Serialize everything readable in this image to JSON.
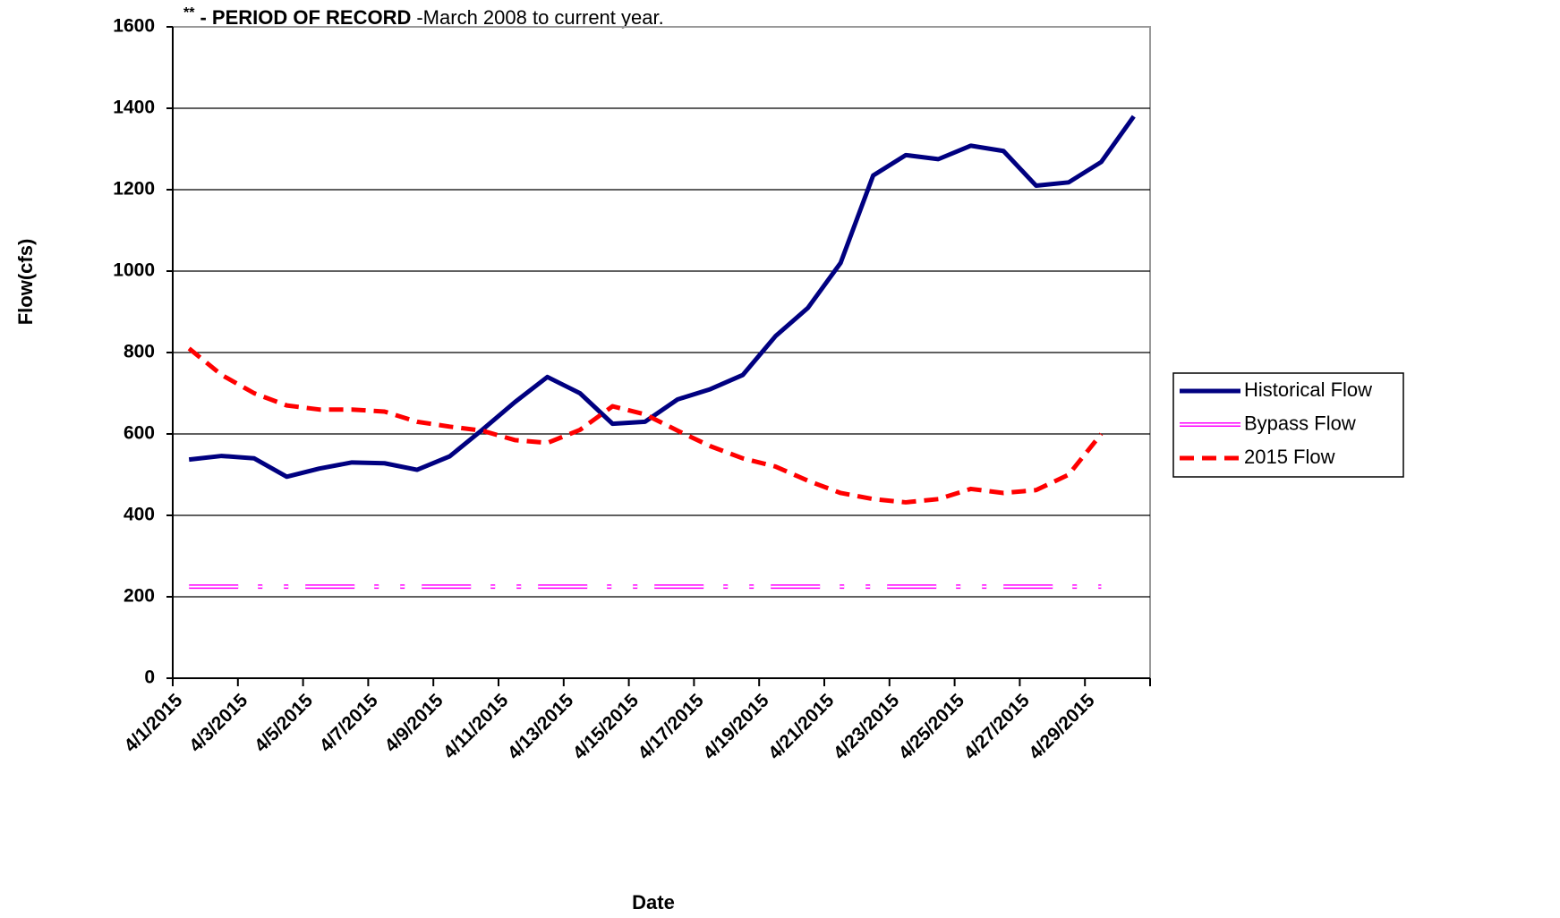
{
  "chart_data": {
    "type": "line",
    "note": {
      "mark": "**",
      "bold": "- PERIOD OF RECORD",
      "text": "-March 2008 to current year."
    },
    "x_label": "Date",
    "y_label": "Flow(cfs)",
    "categories": [
      "4/1/2015",
      null,
      "4/3/2015",
      null,
      "4/5/2015",
      null,
      "4/7/2015",
      null,
      "4/9/2015",
      null,
      "4/11/2015",
      null,
      "4/13/2015",
      null,
      "4/15/2015",
      null,
      "4/17/2015",
      null,
      "4/19/2015",
      null,
      "4/21/2015",
      null,
      "4/23/2015",
      null,
      "4/25/2015",
      null,
      "4/27/2015",
      null,
      "4/29/2015",
      null
    ],
    "series": [
      {
        "name": "Historical Flow",
        "color": "#000080",
        "style": "solid",
        "values": [
          537,
          546,
          540,
          495,
          515,
          530,
          528,
          512,
          545,
          610,
          678,
          740,
          700,
          625,
          630,
          685,
          710,
          745,
          840,
          910,
          1020,
          1235,
          1285,
          1275,
          1308,
          1295,
          1210,
          1218,
          1268,
          1380
        ]
      },
      {
        "name": "Bypass Flow",
        "color": "#ff00ff",
        "style": "dashdot",
        "values": [
          225,
          225,
          225,
          225,
          225,
          225,
          225,
          225,
          225,
          225,
          225,
          225,
          225,
          225,
          225,
          225,
          225,
          225,
          225,
          225,
          225,
          225,
          225,
          225,
          225,
          225,
          225,
          225,
          225,
          null
        ]
      },
      {
        "name": "2015 Flow",
        "color": "#ff0000",
        "style": "dashed",
        "values": [
          810,
          745,
          700,
          670,
          660,
          660,
          655,
          630,
          618,
          608,
          585,
          578,
          610,
          668,
          648,
          608,
          570,
          540,
          520,
          485,
          455,
          440,
          432,
          440,
          465,
          455,
          462,
          500,
          600,
          null
        ]
      }
    ],
    "ylim": [
      0,
      1600
    ],
    "yticks": [
      0,
      200,
      400,
      600,
      800,
      1000,
      1200,
      1400,
      1600
    ],
    "grid": true,
    "legend": "right"
  }
}
